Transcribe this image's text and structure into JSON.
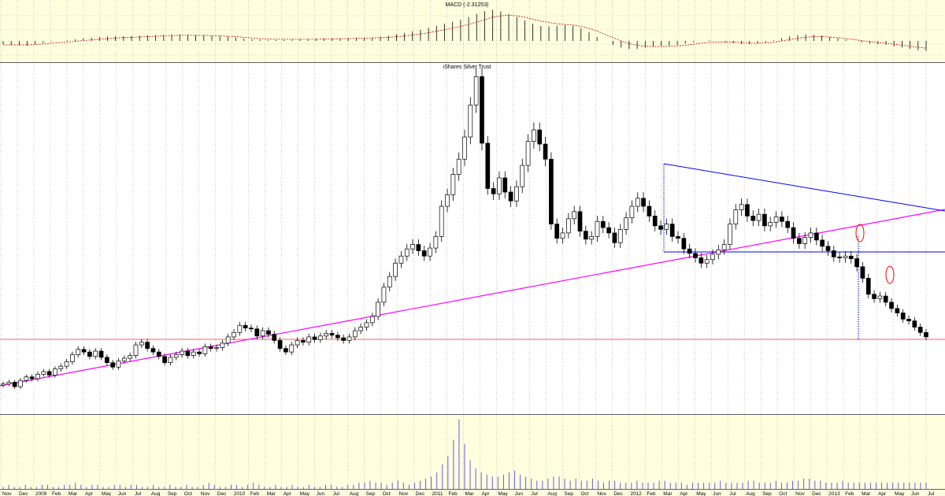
{
  "colors": {
    "panel_bg": "#ffffe0",
    "main_bg": "#ffffff",
    "frame": "#606060",
    "grid": "#a8a8a8",
    "candle": "#000000",
    "trendline_magenta": "#ff00ff",
    "wedge_blue": "#0000ff",
    "support_red": "#ff6060",
    "marker_red": "#ff0000",
    "macd_signal": "#cc0000",
    "volume": "#6060e0",
    "projection_blue": "#0000c0"
  },
  "chart_data": [
    {
      "id": "macd",
      "type": "bar",
      "title": "MACD (-2.31253)",
      "series": [
        {
          "role": "histogram",
          "values": [
            -0.1,
            -0.12,
            -0.13,
            -0.14,
            -0.1,
            -0.06,
            -0.02,
            0.0,
            0.02,
            0.05,
            0.08,
            0.1,
            0.12,
            0.13,
            0.14,
            0.14,
            0.15,
            0.16,
            0.17,
            0.18,
            0.19,
            0.2,
            0.2,
            0.19,
            0.18,
            0.17,
            0.15,
            0.14,
            0.13,
            0.1,
            0.07,
            0.05,
            0.04,
            0.03,
            0.03,
            0.04,
            0.04,
            0.05,
            0.05,
            0.06,
            0.07,
            0.08,
            0.08,
            0.09,
            0.1,
            0.1,
            0.11,
            0.13,
            0.16,
            0.2,
            0.24,
            0.29,
            0.34,
            0.4,
            0.46,
            0.52,
            0.58,
            0.64,
            0.72,
            0.82,
            0.9,
            0.94,
            0.9,
            0.82,
            0.72,
            0.62,
            0.52,
            0.45,
            0.44,
            0.46,
            0.48,
            0.45,
            0.38,
            0.26,
            0.12,
            0.0,
            -0.12,
            -0.2,
            -0.24,
            -0.24,
            -0.2,
            -0.17,
            -0.15,
            -0.14,
            -0.12,
            -0.08,
            -0.04,
            0.0,
            0.02,
            0.0,
            -0.03,
            -0.06,
            -0.09,
            -0.1,
            -0.08,
            -0.04,
            0.02,
            0.08,
            0.14,
            0.18,
            0.2,
            0.19,
            0.16,
            0.12,
            0.08,
            0.04,
            0.0,
            -0.04,
            -0.08,
            -0.1,
            -0.12,
            -0.16,
            -0.2,
            -0.24,
            -0.28,
            -0.3
          ]
        },
        {
          "role": "signal",
          "values": [
            -0.12,
            -0.12,
            -0.12,
            -0.12,
            -0.11,
            -0.09,
            -0.07,
            -0.05,
            -0.03,
            -0.01,
            0.01,
            0.03,
            0.05,
            0.07,
            0.09,
            0.1,
            0.11,
            0.12,
            0.13,
            0.14,
            0.15,
            0.16,
            0.17,
            0.17,
            0.17,
            0.17,
            0.16,
            0.15,
            0.14,
            0.13,
            0.11,
            0.09,
            0.07,
            0.06,
            0.05,
            0.05,
            0.05,
            0.05,
            0.05,
            0.05,
            0.06,
            0.06,
            0.07,
            0.07,
            0.08,
            0.08,
            0.09,
            0.1,
            0.11,
            0.13,
            0.15,
            0.18,
            0.21,
            0.25,
            0.29,
            0.34,
            0.39,
            0.44,
            0.5,
            0.57,
            0.64,
            0.72,
            0.76,
            0.78,
            0.76,
            0.72,
            0.66,
            0.6,
            0.56,
            0.52,
            0.5,
            0.48,
            0.44,
            0.38,
            0.3,
            0.2,
            0.1,
            0.0,
            -0.08,
            -0.13,
            -0.16,
            -0.17,
            -0.17,
            -0.16,
            -0.15,
            -0.13,
            -0.1,
            -0.07,
            -0.04,
            -0.03,
            -0.03,
            -0.04,
            -0.05,
            -0.07,
            -0.07,
            -0.06,
            -0.04,
            0.0,
            0.04,
            0.08,
            0.11,
            0.13,
            0.13,
            0.12,
            0.1,
            0.07,
            0.04,
            0.01,
            -0.02,
            -0.05,
            -0.07,
            -0.1,
            -0.13,
            -0.16,
            -0.19,
            -0.22
          ]
        }
      ]
    },
    {
      "id": "price",
      "type": "candlestick",
      "title": "iShares Silver Trust",
      "closes": [
        13.2,
        13.4,
        12.9,
        13.6,
        14.0,
        13.8,
        14.3,
        14.6,
        14.2,
        14.9,
        15.2,
        15.7,
        16.5,
        17.1,
        16.8,
        16.3,
        16.9,
        16.2,
        15.6,
        15.1,
        15.8,
        16.1,
        16.4,
        17.6,
        17.9,
        17.2,
        16.8,
        16.3,
        15.6,
        16.2,
        16.5,
        16.9,
        16.4,
        16.8,
        16.6,
        17.4,
        17.2,
        17.3,
        17.8,
        18.5,
        19.0,
        19.8,
        19.5,
        19.4,
        18.6,
        19.2,
        18.8,
        18.1,
        17.2,
        16.8,
        17.6,
        18.1,
        17.9,
        18.5,
        18.2,
        18.6,
        18.9,
        18.7,
        18.4,
        18.1,
        18.5,
        19.2,
        19.6,
        20.1,
        20.8,
        22.4,
        24.1,
        25.3,
        26.8,
        27.6,
        28.4,
        28.9,
        28.2,
        27.6,
        28.5,
        29.8,
        33.2,
        34.5,
        36.8,
        38.5,
        41.0,
        44.6,
        47.8,
        40.3,
        35.2,
        34.6,
        36.4,
        34.8,
        33.8,
        35.4,
        37.8,
        40.5,
        41.8,
        40.2,
        38.5,
        31.2,
        29.6,
        30.2,
        31.8,
        32.6,
        30.4,
        29.5,
        29.8,
        31.5,
        30.8,
        30.2,
        29.1,
        30.6,
        31.9,
        33.2,
        34.1,
        33.2,
        32.1,
        31.0,
        30.6,
        31.2,
        29.8,
        29.6,
        28.4,
        27.9,
        27.4,
        26.8,
        27.2,
        27.8,
        28.3,
        28.9,
        31.2,
        32.8,
        33.4,
        32.1,
        31.6,
        32.3,
        31.0,
        31.4,
        32.0,
        31.5,
        30.8,
        29.6,
        29.0,
        29.7,
        30.2,
        29.4,
        28.7,
        28.2,
        27.5,
        27.4,
        27.6,
        27.3,
        26.4,
        25.1,
        23.3,
        22.8,
        23.1,
        22.4,
        21.7,
        21.2,
        20.5,
        20.3,
        19.6,
        19.0,
        18.5
      ]
    },
    {
      "id": "volume",
      "type": "bar",
      "values": [
        1,
        2,
        1,
        1,
        2,
        1,
        1,
        2,
        2,
        1,
        1,
        2,
        2,
        3,
        2,
        1,
        2,
        2,
        1,
        1,
        2,
        2,
        1,
        2,
        2,
        1,
        1,
        2,
        1,
        1,
        2,
        1,
        1,
        2,
        1,
        1,
        2,
        3,
        2,
        1,
        1,
        2,
        2,
        1,
        2,
        3,
        2,
        1,
        1,
        2,
        1,
        1,
        2,
        1,
        1,
        2,
        1,
        1,
        2,
        2,
        1,
        1,
        2,
        2,
        3,
        3,
        4,
        3,
        3,
        2,
        3,
        4,
        3,
        2,
        3,
        4,
        5,
        6,
        8,
        12,
        16,
        24,
        34,
        22,
        14,
        10,
        8,
        7,
        6,
        6,
        7,
        8,
        9,
        7,
        6,
        5,
        4,
        4,
        5,
        6,
        6,
        5,
        4,
        5,
        4,
        4,
        5,
        4,
        3,
        4,
        4,
        3,
        3,
        3,
        4,
        3,
        3,
        3,
        4,
        4,
        3,
        3,
        3,
        2,
        3,
        3,
        3,
        3,
        3,
        4,
        3,
        3,
        3,
        3,
        4,
        4,
        3,
        3,
        3,
        4,
        3,
        3,
        4,
        4,
        5,
        5,
        4,
        4,
        3,
        3,
        3,
        4,
        3,
        3,
        3,
        3,
        3,
        3,
        3,
        3,
        3,
        3,
        3,
        3,
        3,
        3,
        3
      ]
    }
  ],
  "x_axis": {
    "labels": [
      "Nov",
      "Dec",
      "2009",
      "Feb",
      "Mar",
      "Apr",
      "May",
      "Jun",
      "Jul",
      "Aug",
      "Sep",
      "Oct",
      "Nov",
      "Dec",
      "2010",
      "Feb",
      "Mar",
      "Apr",
      "May",
      "Jun",
      "Jul",
      "Aug",
      "Sep",
      "Oct",
      "Nov",
      "Dec",
      "2011",
      "Feb",
      "Mar",
      "Apr",
      "May",
      "Jun",
      "Jul",
      "Aug",
      "Sep",
      "Oct",
      "Nov",
      "Dec",
      "2012",
      "Feb",
      "Mar",
      "Apr",
      "May",
      "Jun",
      "Jul",
      "Aug",
      "Sep",
      "Oct",
      "Nov",
      "Dec",
      "2013",
      "Feb",
      "Mar",
      "Apr",
      "May",
      "Jun",
      "Jul"
    ]
  }
}
